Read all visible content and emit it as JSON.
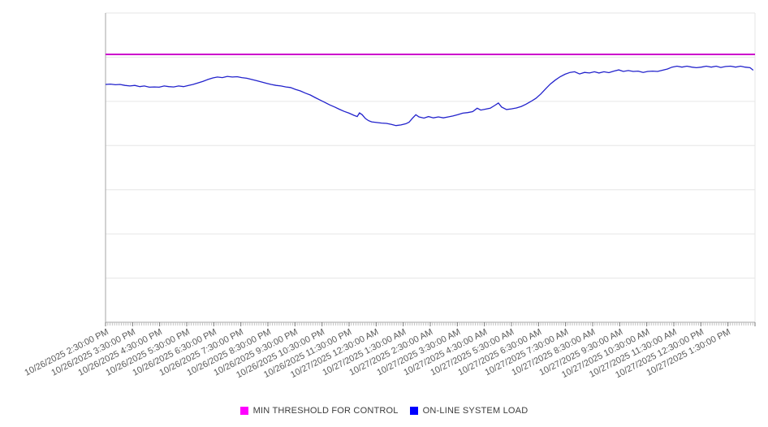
{
  "chart_data": {
    "type": "line",
    "title": "",
    "xlabel": "",
    "ylabel": "",
    "y_axis": {
      "tick_labels_visible": false,
      "range": [
        0,
        100
      ],
      "gridline_divisions": 7,
      "grid": "horizontal"
    },
    "x_axis": {
      "minor_tick_minutes": 5,
      "major_tick_minutes": 60,
      "range_minutes": [
        0,
        1440
      ],
      "tick_labels": [
        "10/26/2025 2:30:00 PM",
        "10/26/2025 3:30:00 PM",
        "10/26/2025 4:30:00 PM",
        "10/26/2025 5:30:00 PM",
        "10/26/2025 6:30:00 PM",
        "10/26/2025 7:30:00 PM",
        "10/26/2025 8:30:00 PM",
        "10/26/2025 9:30:00 PM",
        "10/26/2025 10:30:00 PM",
        "10/26/2025 11:30:00 PM",
        "10/27/2025 12:30:00 AM",
        "10/27/2025 1:30:00 AM",
        "10/27/2025 2:30:00 AM",
        "10/27/2025 3:30:00 AM",
        "10/27/2025 4:30:00 AM",
        "10/27/2025 5:30:00 AM",
        "10/27/2025 6:30:00 AM",
        "10/27/2025 7:30:00 AM",
        "10/27/2025 8:30:00 AM",
        "10/27/2025 9:30:00 AM",
        "10/27/2025 10:30:00 AM",
        "10/27/2025 11:30:00 AM",
        "10/27/2025 12:30:00 PM",
        "10/27/2025 1:30:00 PM"
      ]
    },
    "series": [
      {
        "name": "MIN THRESHOLD FOR CONTROL",
        "type": "threshold",
        "color": "#cc00cc",
        "stroke_width": 2,
        "value": 86.6
      },
      {
        "name": "ON-LINE SYSTEM LOAD",
        "type": "line",
        "color": "#2222cc",
        "stroke_width": 1.3,
        "points_minutes_value": [
          [
            0,
            76.9
          ],
          [
            11,
            77.0
          ],
          [
            22,
            76.8
          ],
          [
            32,
            76.9
          ],
          [
            43,
            76.6
          ],
          [
            54,
            76.4
          ],
          [
            65,
            76.6
          ],
          [
            76,
            76.2
          ],
          [
            86,
            76.4
          ],
          [
            97,
            76.0
          ],
          [
            108,
            76.1
          ],
          [
            119,
            76.0
          ],
          [
            130,
            76.4
          ],
          [
            140,
            76.2
          ],
          [
            151,
            76.1
          ],
          [
            162,
            76.4
          ],
          [
            173,
            76.2
          ],
          [
            184,
            76.6
          ],
          [
            194,
            76.9
          ],
          [
            205,
            77.4
          ],
          [
            216,
            77.9
          ],
          [
            227,
            78.5
          ],
          [
            238,
            79.0
          ],
          [
            248,
            79.3
          ],
          [
            259,
            79.1
          ],
          [
            270,
            79.5
          ],
          [
            281,
            79.3
          ],
          [
            292,
            79.4
          ],
          [
            302,
            79.1
          ],
          [
            313,
            78.9
          ],
          [
            324,
            78.5
          ],
          [
            335,
            78.1
          ],
          [
            346,
            77.7
          ],
          [
            356,
            77.3
          ],
          [
            367,
            76.9
          ],
          [
            378,
            76.6
          ],
          [
            389,
            76.4
          ],
          [
            400,
            76.1
          ],
          [
            410,
            75.9
          ],
          [
            421,
            75.3
          ],
          [
            432,
            74.8
          ],
          [
            443,
            74.1
          ],
          [
            454,
            73.5
          ],
          [
            464,
            72.7
          ],
          [
            475,
            71.9
          ],
          [
            486,
            71.1
          ],
          [
            497,
            70.3
          ],
          [
            508,
            69.6
          ],
          [
            518,
            68.9
          ],
          [
            529,
            68.2
          ],
          [
            540,
            67.6
          ],
          [
            551,
            66.9
          ],
          [
            558,
            66.5
          ],
          [
            563,
            67.7
          ],
          [
            569,
            67.1
          ],
          [
            576,
            65.9
          ],
          [
            583,
            65.2
          ],
          [
            590,
            64.8
          ],
          [
            601,
            64.6
          ],
          [
            612,
            64.4
          ],
          [
            623,
            64.3
          ],
          [
            634,
            64.0
          ],
          [
            644,
            63.6
          ],
          [
            655,
            63.8
          ],
          [
            666,
            64.2
          ],
          [
            673,
            64.7
          ],
          [
            680,
            65.9
          ],
          [
            688,
            67.1
          ],
          [
            695,
            66.4
          ],
          [
            706,
            66.0
          ],
          [
            716,
            66.5
          ],
          [
            727,
            66.1
          ],
          [
            738,
            66.4
          ],
          [
            749,
            66.1
          ],
          [
            760,
            66.4
          ],
          [
            770,
            66.7
          ],
          [
            781,
            67.1
          ],
          [
            792,
            67.6
          ],
          [
            803,
            67.8
          ],
          [
            814,
            68.1
          ],
          [
            824,
            69.2
          ],
          [
            832,
            68.6
          ],
          [
            842,
            68.9
          ],
          [
            853,
            69.2
          ],
          [
            864,
            70.2
          ],
          [
            871,
            70.9
          ],
          [
            878,
            69.6
          ],
          [
            889,
            68.8
          ],
          [
            900,
            69.0
          ],
          [
            911,
            69.3
          ],
          [
            922,
            69.8
          ],
          [
            932,
            70.5
          ],
          [
            943,
            71.4
          ],
          [
            954,
            72.4
          ],
          [
            965,
            73.8
          ],
          [
            976,
            75.5
          ],
          [
            986,
            77.0
          ],
          [
            997,
            78.3
          ],
          [
            1008,
            79.4
          ],
          [
            1019,
            80.2
          ],
          [
            1030,
            80.8
          ],
          [
            1040,
            81.0
          ],
          [
            1051,
            80.3
          ],
          [
            1062,
            80.8
          ],
          [
            1073,
            80.6
          ],
          [
            1084,
            81.0
          ],
          [
            1094,
            80.6
          ],
          [
            1105,
            81.0
          ],
          [
            1116,
            80.7
          ],
          [
            1127,
            81.2
          ],
          [
            1138,
            81.6
          ],
          [
            1148,
            81.1
          ],
          [
            1159,
            81.4
          ],
          [
            1170,
            81.1
          ],
          [
            1181,
            81.2
          ],
          [
            1192,
            80.8
          ],
          [
            1202,
            81.1
          ],
          [
            1213,
            81.2
          ],
          [
            1224,
            81.1
          ],
          [
            1235,
            81.5
          ],
          [
            1246,
            81.9
          ],
          [
            1256,
            82.5
          ],
          [
            1267,
            82.8
          ],
          [
            1278,
            82.5
          ],
          [
            1289,
            82.8
          ],
          [
            1300,
            82.5
          ],
          [
            1310,
            82.3
          ],
          [
            1321,
            82.5
          ],
          [
            1332,
            82.8
          ],
          [
            1343,
            82.5
          ],
          [
            1354,
            82.8
          ],
          [
            1364,
            82.4
          ],
          [
            1375,
            82.7
          ],
          [
            1386,
            82.8
          ],
          [
            1397,
            82.5
          ],
          [
            1408,
            82.8
          ],
          [
            1418,
            82.5
          ],
          [
            1429,
            82.3
          ],
          [
            1436,
            81.5
          ]
        ]
      }
    ],
    "legend": {
      "position": "bottom-center",
      "entries": [
        {
          "label": "MIN THRESHOLD FOR CONTROL",
          "color": "#ff00ff"
        },
        {
          "label": "ON-LINE SYSTEM LOAD",
          "color": "#0000ff"
        }
      ]
    },
    "colors": {
      "background": "#ffffff",
      "gridline": "#e6e6e6",
      "axis": "#a6a6a6",
      "minor_tick": "#c2c2c2",
      "major_tick": "#7a7a7a",
      "label_text": "#595959"
    }
  }
}
